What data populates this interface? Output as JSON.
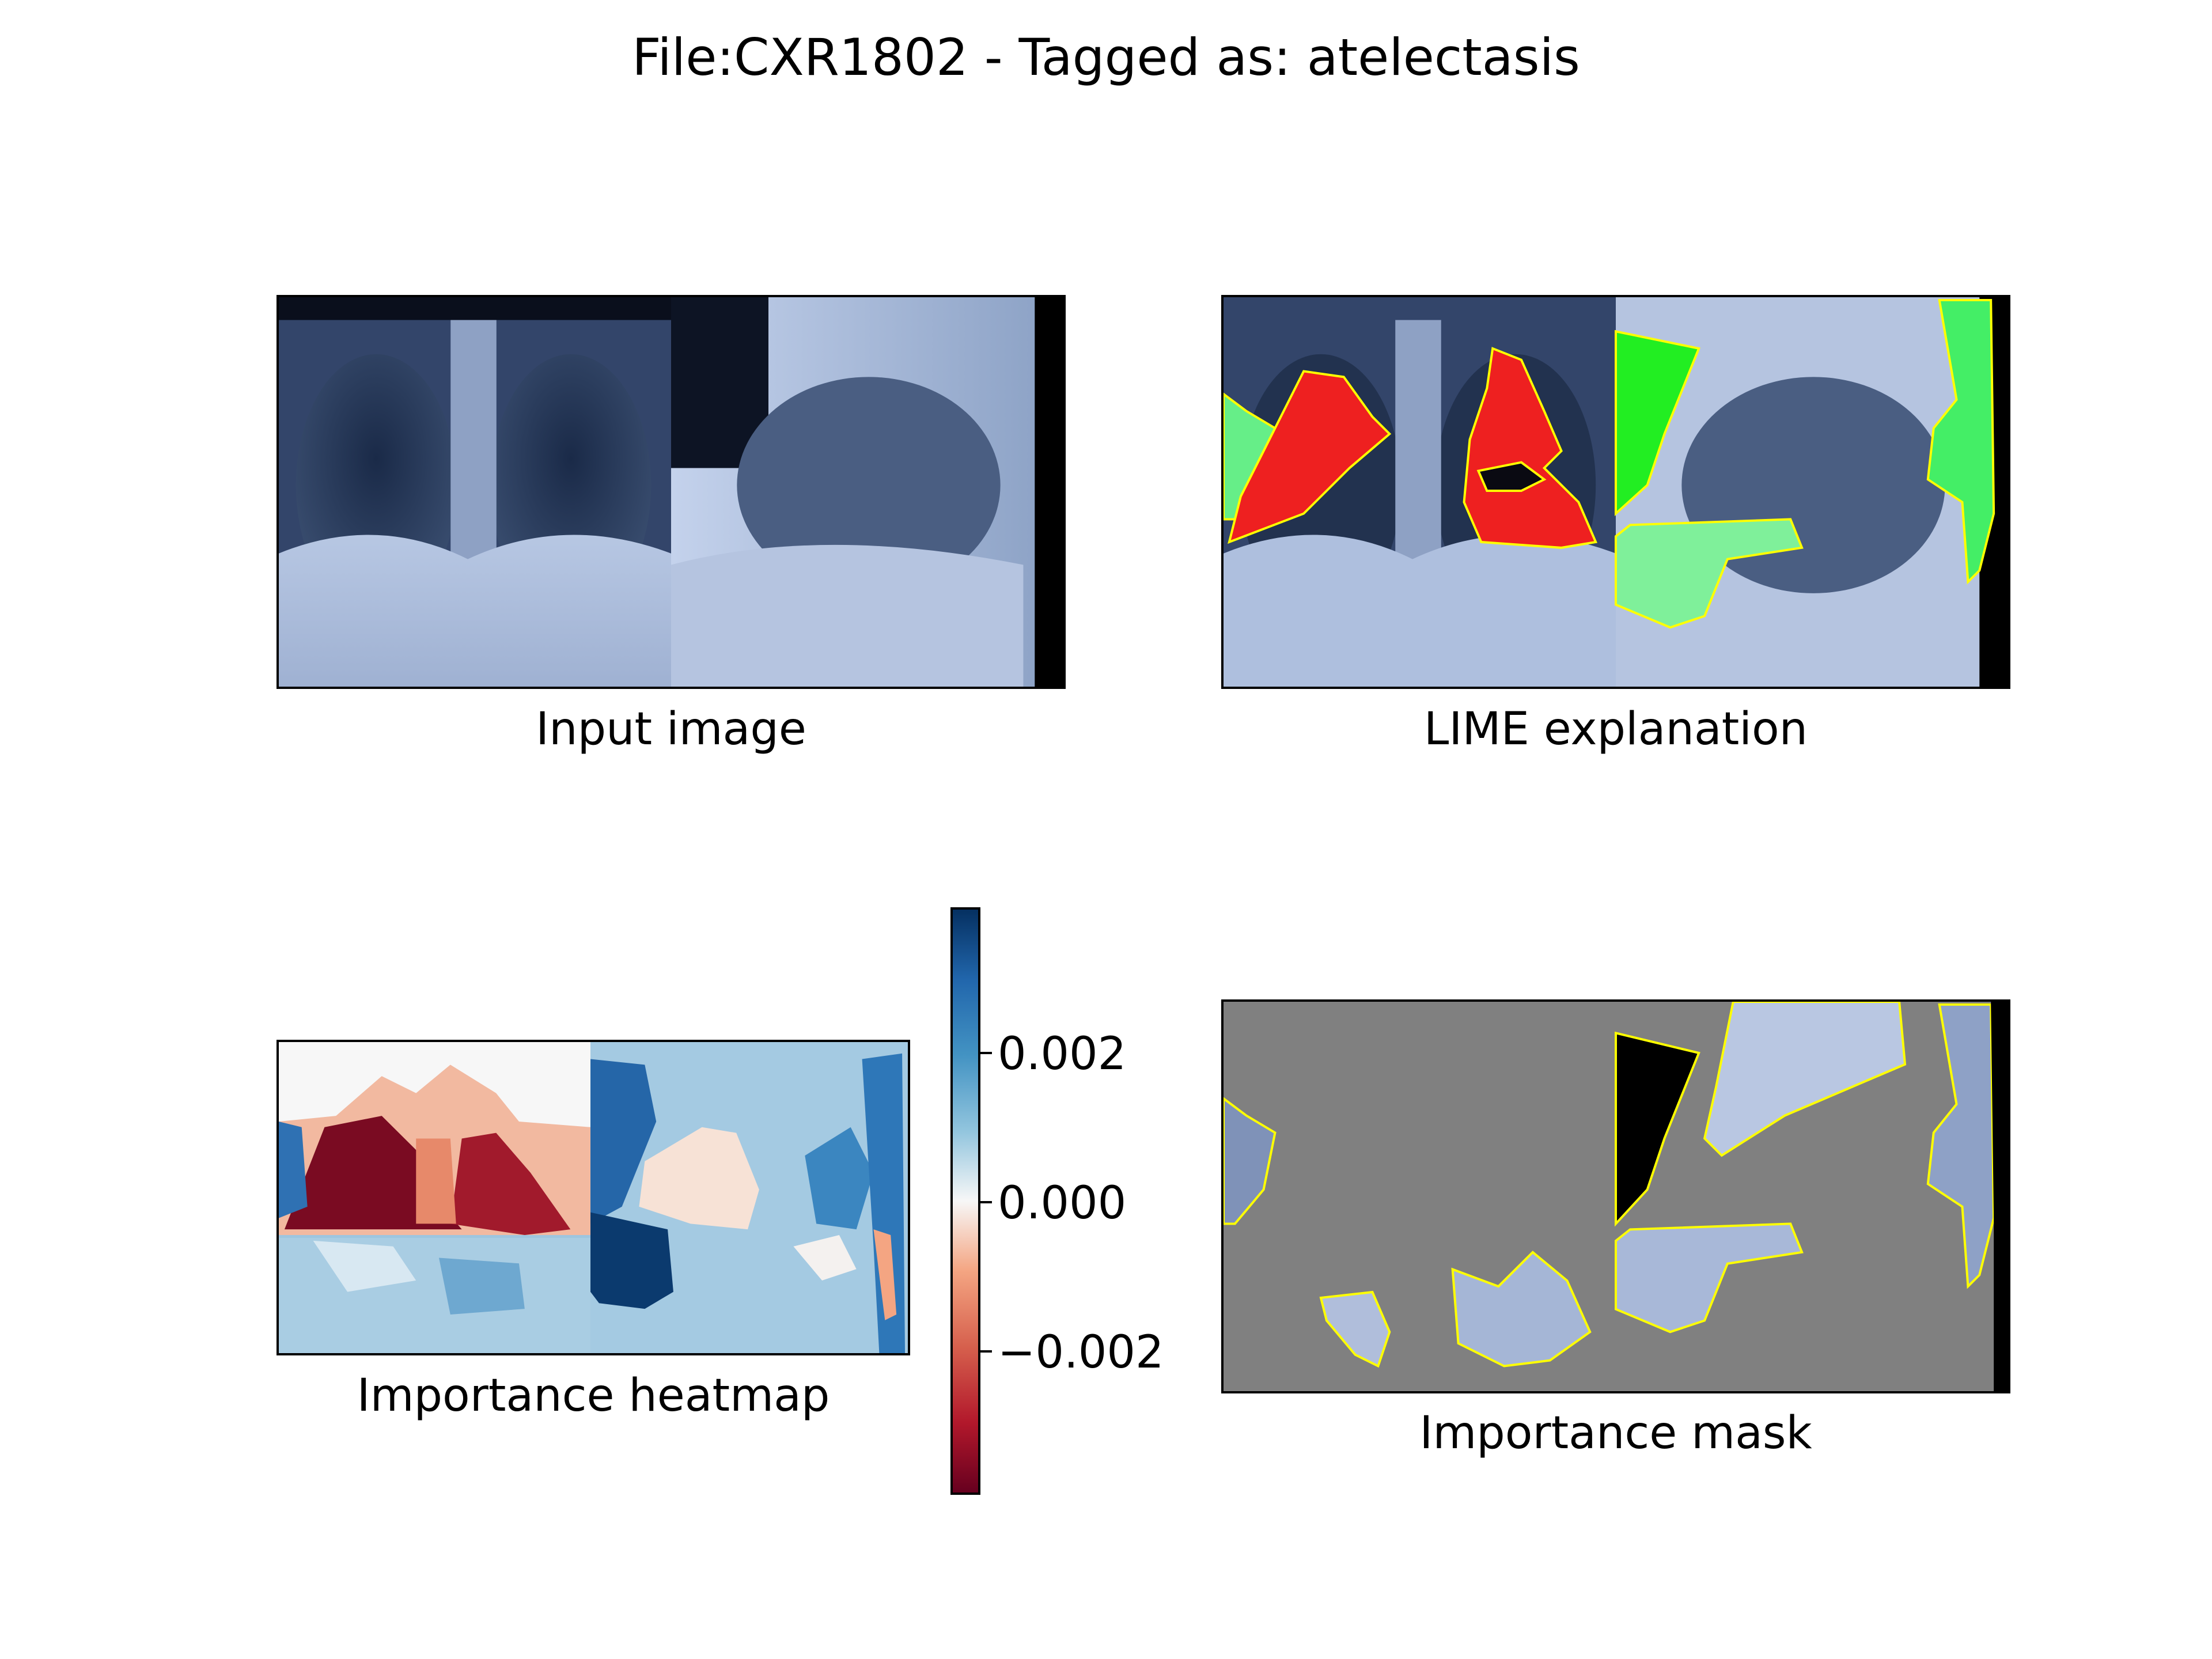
{
  "figure": {
    "title": "File:CXR1802 - Tagged as: atelectasis"
  },
  "panels": {
    "input": {
      "caption": "Input image"
    },
    "lime": {
      "caption": "LIME explanation"
    },
    "heatmap": {
      "caption": "Importance heatmap"
    },
    "mask": {
      "caption": "Importance mask"
    }
  },
  "colorbar": {
    "colormap": "RdBu",
    "ticks": [
      {
        "value": 0.002,
        "label": "0.002"
      },
      {
        "value": 0.0,
        "label": "0.000"
      },
      {
        "value": -0.002,
        "label": "−0.002"
      }
    ],
    "range": [
      -0.0039,
      0.0039
    ]
  },
  "colors": {
    "positive_region": "#00ff00",
    "negative_region": "#ff0000",
    "boundary": "#ffff00",
    "mask_background": "#808080"
  }
}
